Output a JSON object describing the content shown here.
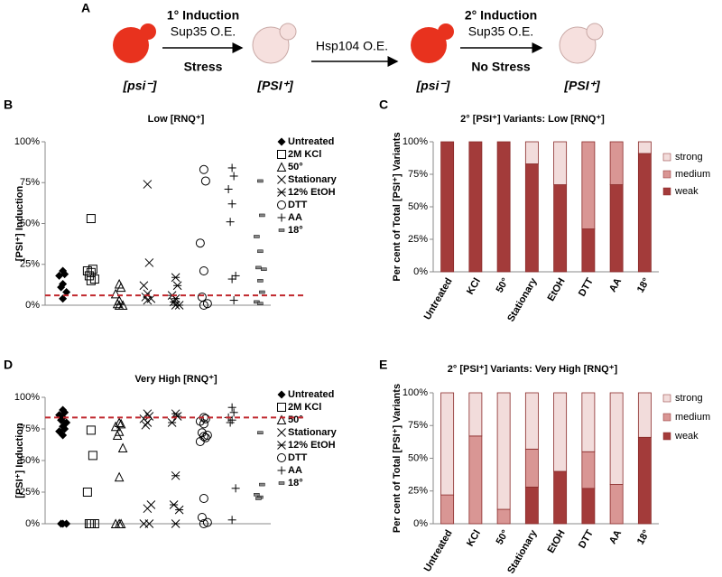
{
  "diagram": {
    "panel": "A",
    "cell1": "[psi⁻]",
    "step1_title": "1° Induction",
    "step1_sub": "Sup35 O.E.",
    "step1_cond": "Stress",
    "cell2": "[PSI⁺]",
    "step2_sub": "Hsp104 O.E.",
    "cell3": "[psi⁻]",
    "step3_title": "2° Induction",
    "step3_sub": "Sup35 O.E.",
    "step3_cond": "No Stress",
    "cell4": "[PSI⁺]"
  },
  "panels": [
    "B",
    "C",
    "D",
    "E"
  ],
  "chart_data": [
    {
      "type": "strip",
      "title": "Low [RNQ⁺]",
      "y_label": "[PSI⁺] Induction",
      "ylim": [
        0,
        100
      ],
      "yticks": [
        {
          "value": 0,
          "label": "0%"
        },
        {
          "value": 25,
          "label": "25%"
        },
        {
          "value": 50,
          "label": "50%"
        },
        {
          "value": 75,
          "label": "75%"
        },
        {
          "value": 100,
          "label": "100%"
        }
      ],
      "reference_line": {
        "value": 6,
        "color": "#c0272d"
      },
      "series": [
        {
          "name": "Untreated",
          "marker": "diamond",
          "values": [
            21,
            19,
            18,
            13,
            11,
            8,
            4
          ]
        },
        {
          "name": "2M KCl",
          "marker": "square",
          "values": [
            53,
            22,
            21,
            20,
            18,
            16,
            15
          ]
        },
        {
          "name": "50°",
          "marker": "triangle",
          "values": [
            13,
            11,
            7,
            3,
            1,
            0,
            0
          ]
        },
        {
          "name": "Stationary",
          "marker": "x",
          "values": [
            74,
            26,
            12,
            7,
            5,
            4,
            3
          ]
        },
        {
          "name": "12% EtOH",
          "marker": "asterisk",
          "values": [
            17,
            12,
            6,
            4,
            2,
            0,
            0
          ]
        },
        {
          "name": "DTT",
          "marker": "circle",
          "values": [
            83,
            76,
            38,
            21,
            5,
            1,
            0
          ]
        },
        {
          "name": "AA",
          "marker": "plus",
          "values": [
            84,
            79,
            71,
            62,
            51,
            18,
            16,
            3
          ]
        },
        {
          "name": "18°",
          "marker": "dash",
          "values": [
            76,
            55,
            42,
            33,
            23,
            22,
            15,
            8,
            2,
            1
          ]
        }
      ]
    },
    {
      "type": "stacked_bar",
      "title": "2° [PSI⁺] Variants: Low [RNQ⁺]",
      "y_label": "Per cent of Total [PSI⁺] Variants",
      "categories": [
        "Untreated",
        "KCl",
        "50°",
        "Stationary",
        "EtOH",
        "DTT",
        "AA",
        "18°"
      ],
      "ylim": [
        0,
        100
      ],
      "yticks": [
        {
          "value": 0,
          "label": "0%"
        },
        {
          "value": 25,
          "label": "25%"
        },
        {
          "value": 50,
          "label": "50%"
        },
        {
          "value": 75,
          "label": "75%"
        },
        {
          "value": 100,
          "label": "100%"
        }
      ],
      "series": [
        {
          "name": "weak",
          "color": "#a33b3a",
          "values": [
            100,
            100,
            100,
            83,
            67,
            33,
            67,
            91
          ]
        },
        {
          "name": "medium",
          "color": "#d99694",
          "values": [
            0,
            0,
            0,
            0,
            0,
            67,
            33,
            0
          ]
        },
        {
          "name": "strong",
          "color": "#f2dcdb",
          "values": [
            0,
            0,
            0,
            17,
            33,
            0,
            0,
            9
          ]
        }
      ]
    },
    {
      "type": "strip",
      "title": "Very High [RNQ⁺]",
      "y_label": "[PSI⁺] Induction",
      "ylim": [
        0,
        100
      ],
      "yticks": [
        {
          "value": 0,
          "label": "0%"
        },
        {
          "value": 25,
          "label": "25%"
        },
        {
          "value": 50,
          "label": "50%"
        },
        {
          "value": 75,
          "label": "75%"
        },
        {
          "value": 100,
          "label": "100%"
        }
      ],
      "reference_line": {
        "value": 84,
        "color": "#c0272d"
      },
      "series": [
        {
          "name": "Untreated",
          "marker": "diamond",
          "values": [
            90,
            88,
            86,
            84,
            82,
            80,
            77,
            75,
            73,
            70,
            0,
            0,
            0
          ]
        },
        {
          "name": "2M KCl",
          "marker": "square",
          "values": [
            74,
            54,
            25,
            0,
            0,
            0,
            0
          ]
        },
        {
          "name": "50°",
          "marker": "triangle",
          "values": [
            80,
            79,
            77,
            73,
            70,
            60,
            37,
            0,
            0,
            0
          ]
        },
        {
          "name": "Stationary",
          "marker": "x",
          "values": [
            87,
            85,
            83,
            80,
            78,
            15,
            12,
            0,
            0
          ]
        },
        {
          "name": "12% EtOH",
          "marker": "asterisk",
          "values": [
            87,
            85,
            80,
            38,
            15,
            11,
            0
          ]
        },
        {
          "name": "DTT",
          "marker": "circle",
          "values": [
            84,
            83,
            81,
            79,
            72,
            70,
            69,
            68,
            65,
            20,
            5,
            1,
            0
          ]
        },
        {
          "name": "AA",
          "marker": "plus",
          "values": [
            92,
            88,
            84,
            82,
            80,
            28,
            3
          ]
        },
        {
          "name": "18°",
          "marker": "dash",
          "values": [
            72,
            31,
            23,
            21,
            20
          ]
        }
      ]
    },
    {
      "type": "stacked_bar",
      "title": "2° [PSI⁺] Variants: Very High [RNQ⁺]",
      "y_label": "Per cent of Total [PSI⁺] Variants",
      "categories": [
        "Untreated",
        "KCl",
        "50°",
        "Stationary",
        "EtOH",
        "DTT",
        "AA",
        "18°"
      ],
      "ylim": [
        0,
        100
      ],
      "yticks": [
        {
          "value": 0,
          "label": "0%"
        },
        {
          "value": 25,
          "label": "25%"
        },
        {
          "value": 50,
          "label": "50%"
        },
        {
          "value": 75,
          "label": "75%"
        },
        {
          "value": 100,
          "label": "100%"
        }
      ],
      "series": [
        {
          "name": "weak",
          "color": "#a33b3a",
          "values": [
            0,
            0,
            0,
            28,
            40,
            27,
            0,
            66
          ]
        },
        {
          "name": "medium",
          "color": "#d99694",
          "values": [
            22,
            67,
            11,
            29,
            0,
            28,
            30,
            0
          ]
        },
        {
          "name": "strong",
          "color": "#f2dcdb",
          "values": [
            78,
            33,
            89,
            43,
            60,
            45,
            70,
            34
          ]
        }
      ]
    }
  ]
}
